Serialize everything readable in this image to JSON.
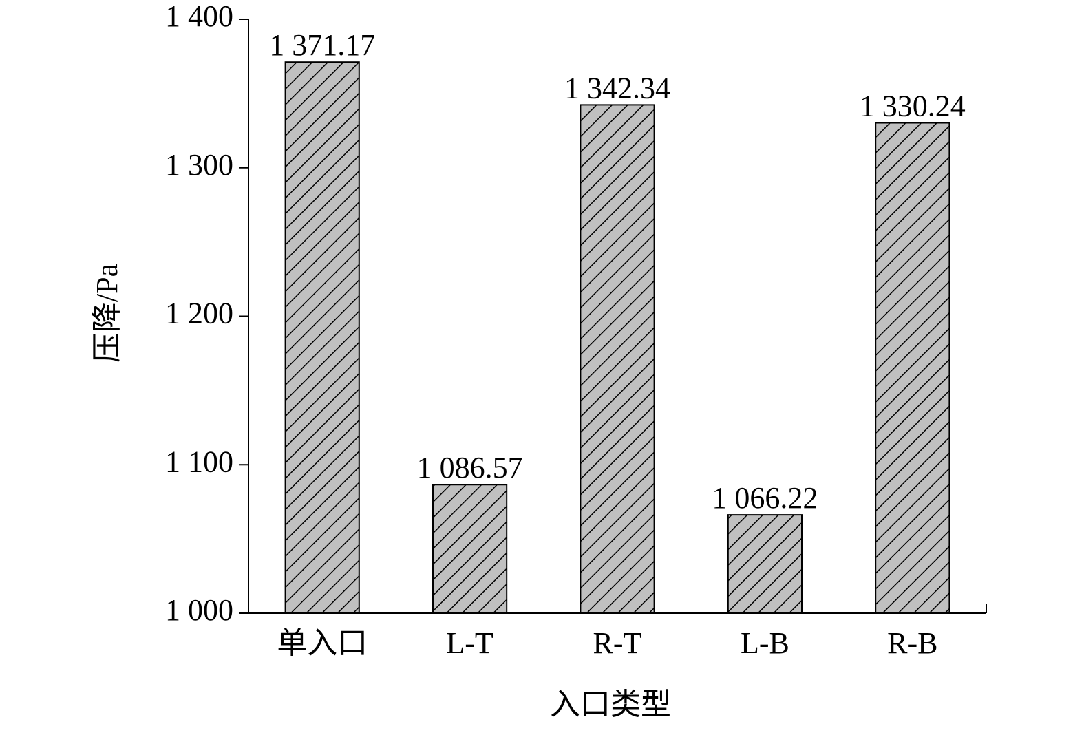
{
  "chart_data": {
    "type": "bar",
    "x_label": "入口类型",
    "y_label": "压降/Pa",
    "categories": [
      "单入口",
      "L-T",
      "R-T",
      "L-B",
      "R-B"
    ],
    "values": [
      1371.17,
      1086.57,
      1342.34,
      1066.22,
      1330.24
    ],
    "value_labels": [
      "1 371.17",
      "1 086.57",
      "1 342.34",
      "1 066.22",
      "1 330.24"
    ],
    "color": "#c0c0c0",
    "hatch": "diagonal",
    "ylim": [
      1000,
      1400
    ],
    "yticks": [
      {
        "value": 1000,
        "label": "1 000"
      },
      {
        "value": 1100,
        "label": "1 100"
      },
      {
        "value": 1200,
        "label": "1 200"
      },
      {
        "value": 1300,
        "label": "1 300"
      },
      {
        "value": 1400,
        "label": "1 400"
      }
    ],
    "grid": false
  }
}
